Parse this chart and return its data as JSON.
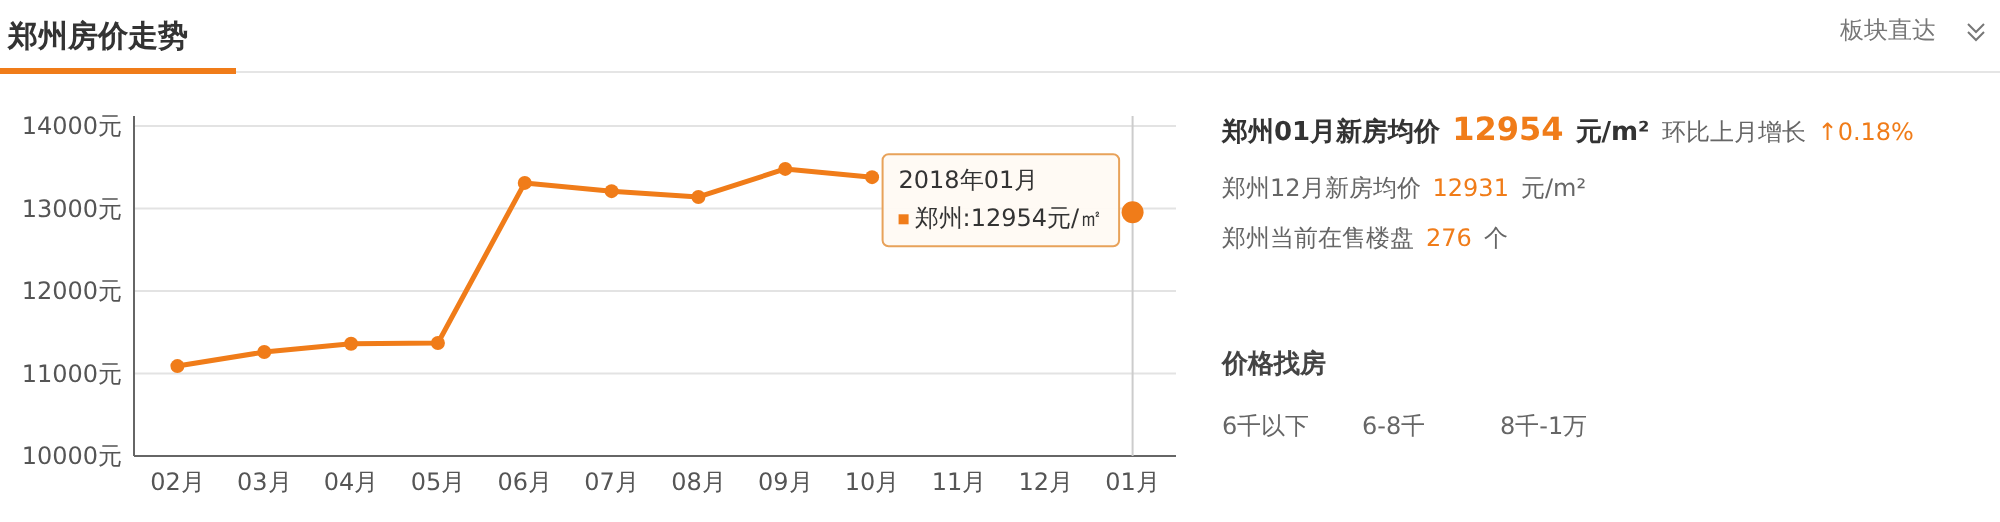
{
  "chart_data": [
    {
      "type": "line",
      "title": "郑州房价走势",
      "categories": [
        "02月",
        "03月",
        "04月",
        "05月",
        "06月",
        "07月",
        "08月",
        "09月",
        "10月",
        "11月",
        "12月",
        "01月"
      ],
      "series": [
        {
          "name": "郑州",
          "color": "#f07c19",
          "values": [
            11090,
            11260,
            11360,
            11370,
            13310,
            13210,
            13140,
            13480,
            13380,
            null,
            null,
            12954
          ]
        }
      ],
      "ylim": [
        10000,
        14000
      ],
      "yticks": [
        {
          "value": 10000,
          "label": "10000元"
        },
        {
          "value": 11000,
          "label": "11000元"
        },
        {
          "value": 12000,
          "label": "12000元"
        },
        {
          "value": 13000,
          "label": "13000元"
        },
        {
          "value": 14000,
          "label": "14000元"
        }
      ],
      "grid": "y",
      "marker": "circle",
      "line_style": "solid",
      "ref_lines": [
        {
          "axis": "x",
          "value": "01月",
          "color": "#cccccc"
        }
      ],
      "annotations": [
        "2018年01月",
        ":12954元/㎡"
      ]
    },
    {
      "type": "other",
      "annotations": [
        "郑州01月新房均价",
        "12954",
        "元/m²",
        "环比上月增长",
        "↑0.18%",
        "郑州12月新房均价",
        "12931",
        "元/m²",
        "郑州当前在售楼盘",
        "276",
        "个",
        "价格找房",
        "6千以下",
        "6-8千",
        "8千-1万",
        "板块直达"
      ]
    }
  ]
}
